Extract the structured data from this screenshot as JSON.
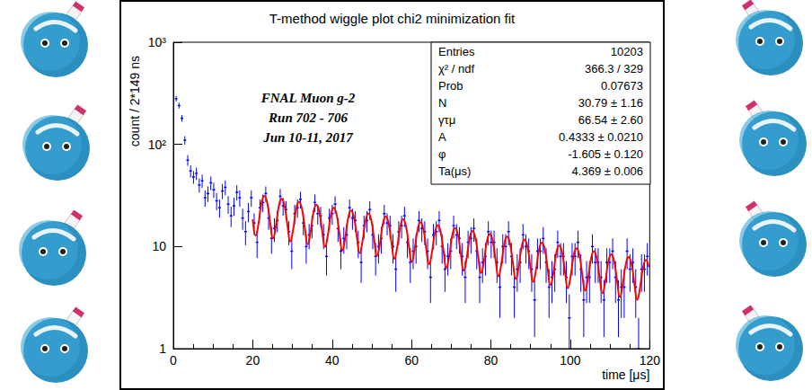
{
  "chart_data": {
    "type": "scatter",
    "title": "T-method wiggle plot chi2 minimization fit",
    "x_label": "time [μs]",
    "y_label": "count / 2*149 ns",
    "log": "y",
    "grid": false,
    "xlim": [
      0,
      120
    ],
    "xticks": [
      0,
      20,
      40,
      60,
      80,
      100,
      120
    ],
    "ylim": [
      1,
      1000
    ],
    "yticks": [
      1,
      10,
      {
        "value": 100,
        "label": "10²"
      },
      {
        "value": 1000,
        "label": "10³"
      }
    ],
    "annotations": [
      "FNAL Muon g-2",
      "Run 702 - 706",
      "Jun 10-11, 2017"
    ],
    "stats_box": [
      {
        "label": "Entries",
        "value": "10203"
      },
      {
        "label": "χ² / ndf",
        "value": "366.3 / 329"
      },
      {
        "label": "Prob",
        "value": "0.07673"
      },
      {
        "label": "N",
        "value": "30.79 ± 1.16"
      },
      {
        "label": "γτμ",
        "value": "66.54 ± 2.60"
      },
      {
        "label": "A",
        "value": "0.4333 ± 0.0210"
      },
      {
        "label": "φ",
        "value": "-1.605 ± 0.120"
      },
      {
        "label": "Ta(μs)",
        "value": "4.369 ± 0.006"
      }
    ],
    "series": [
      {
        "type": "scatter",
        "color": "#0000ff",
        "x": [
          0.7,
          1.43,
          2.16,
          2.89,
          3.62,
          4.34,
          5.07,
          5.8,
          6.53,
          7.26,
          7.99,
          8.71,
          9.44,
          10.17,
          10.9,
          11.63,
          12.35,
          13.08,
          13.81,
          14.54,
          15.27,
          15.99,
          16.72,
          17.45,
          18.18,
          18.91,
          19.64,
          20.36,
          21.09,
          21.82,
          22.55,
          23.28,
          24.0,
          24.73,
          25.46,
          26.19,
          26.92,
          27.64,
          28.37,
          29.1,
          29.83,
          30.56,
          31.28,
          32.01,
          32.74,
          33.47,
          34.2,
          34.93,
          35.65,
          36.38,
          37.11,
          37.84,
          38.57,
          39.3,
          40.02,
          40.75,
          41.48,
          42.21,
          42.94,
          43.67,
          44.39,
          45.12,
          45.85,
          46.58,
          47.31,
          48.03,
          48.76,
          49.49,
          50.22,
          50.95,
          51.68,
          52.4,
          53.13,
          53.86,
          54.59,
          55.32,
          56.04,
          56.77,
          57.5,
          58.23,
          58.96,
          59.69,
          60.41,
          61.14,
          61.87,
          62.6,
          63.33,
          64.05,
          64.78,
          65.51,
          66.24,
          66.97,
          67.7,
          68.42,
          69.15,
          69.88,
          70.61,
          71.34,
          72.06,
          72.79,
          73.52,
          74.25,
          74.98,
          75.71,
          76.43,
          77.16,
          77.89,
          78.62,
          79.35,
          80.07,
          80.8,
          81.53,
          82.26,
          82.99,
          83.72,
          84.44,
          85.17,
          85.9,
          86.63,
          87.36,
          88.08,
          88.81,
          89.54,
          90.27,
          91.0,
          91.73,
          92.45,
          93.18,
          93.91,
          94.64,
          95.37,
          96.09,
          96.82,
          97.55,
          98.28,
          99.01,
          99.74,
          100.46,
          101.19,
          101.92,
          102.65,
          103.38,
          104.11,
          104.83,
          105.56,
          106.29,
          107.02,
          107.75,
          108.47,
          109.2,
          109.93,
          110.66,
          111.39,
          112.12,
          112.84,
          113.57,
          114.3,
          115.03,
          115.76,
          116.48,
          117.21,
          117.94,
          118.67,
          119.4
        ],
        "values": [
          280,
          240,
          180,
          110,
          70,
          55,
          48,
          52,
          40,
          44,
          30,
          33,
          42,
          36,
          28,
          24,
          35,
          38,
          26,
          20,
          25,
          34,
          30,
          19,
          14,
          22,
          30,
          17,
          11,
          24,
          27,
          33,
          19,
          12,
          15,
          18,
          31,
          25,
          23,
          14,
          9,
          21,
          24,
          29,
          17,
          10,
          13,
          16,
          27,
          21,
          20,
          13,
          8,
          19,
          21,
          26,
          15,
          9,
          12,
          13,
          24,
          19,
          18,
          11,
          7,
          16,
          18,
          23,
          13,
          8,
          10,
          12,
          21,
          17,
          16,
          10,
          6,
          14,
          16,
          20,
          11,
          7,
          9,
          10,
          18,
          15,
          14,
          9,
          5,
          13,
          14,
          18,
          10,
          6,
          8,
          9,
          16,
          13,
          12,
          8,
          5,
          11,
          12,
          15,
          9,
          5,
          7,
          8,
          14,
          11,
          11,
          7,
          4,
          10,
          10,
          14,
          8,
          4,
          6,
          7,
          13,
          10,
          9,
          6,
          3,
          9,
          9,
          12,
          7,
          4,
          5,
          6,
          11,
          8,
          8,
          5,
          2,
          8,
          8,
          11,
          6,
          3,
          5,
          5,
          10,
          7,
          7,
          5,
          3,
          7,
          7,
          9,
          5,
          3,
          4,
          4,
          9,
          6,
          7,
          4,
          1,
          6,
          6,
          8
        ],
        "errors": [
          16.7,
          15.5,
          13.4,
          10.5,
          8.4,
          7.4,
          6.9,
          7.2,
          6.3,
          6.6,
          5.5,
          5.7,
          6.5,
          6.0,
          5.3,
          4.9,
          5.9,
          6.2,
          5.1,
          4.5,
          5.0,
          5.8,
          5.5,
          4.4,
          3.7,
          4.7,
          5.5,
          4.1,
          3.3,
          4.9,
          5.2,
          5.7,
          4.4,
          3.5,
          3.9,
          4.2,
          5.6,
          5.0,
          4.8,
          3.7,
          3.0,
          4.6,
          4.9,
          5.4,
          4.1,
          3.2,
          3.6,
          4.0,
          5.2,
          4.6,
          4.5,
          3.6,
          2.8,
          4.4,
          4.6,
          5.1,
          3.9,
          3.0,
          3.5,
          3.6,
          4.9,
          4.4,
          4.2,
          3.3,
          2.6,
          4.0,
          4.2,
          4.8,
          3.6,
          2.8,
          3.2,
          3.5,
          4.6,
          4.1,
          4.0,
          3.2,
          2.4,
          3.7,
          4.0,
          4.5,
          3.3,
          2.6,
          3.0,
          3.2,
          4.2,
          3.9,
          3.7,
          3.0,
          2.2,
          3.6,
          3.7,
          4.2,
          3.2,
          2.4,
          2.8,
          3.0,
          4.0,
          3.6,
          3.5,
          2.8,
          2.2,
          3.3,
          3.5,
          3.9,
          3.0,
          2.2,
          2.6,
          2.8,
          3.7,
          3.3,
          3.3,
          2.6,
          2.0,
          3.2,
          3.2,
          3.7,
          2.8,
          2.0,
          2.4,
          2.6,
          3.6,
          3.2,
          3.0,
          2.4,
          1.7,
          3.0,
          3.0,
          3.5,
          2.6,
          2.0,
          2.2,
          2.4,
          3.3,
          2.8,
          2.8,
          2.2,
          1.4,
          2.8,
          2.8,
          3.3,
          2.4,
          1.7,
          2.2,
          2.2,
          3.2,
          2.6,
          2.6,
          2.2,
          1.7,
          2.6,
          2.6,
          3.0,
          2.2,
          1.7,
          2.0,
          2.0,
          3.0,
          2.4,
          2.6,
          2.0,
          1.0,
          2.4,
          2.4,
          2.8
        ]
      },
      {
        "type": "line",
        "color": "#ff0000",
        "x": [
          20.0,
          20.73,
          21.46,
          22.18,
          22.91,
          23.64,
          24.37,
          25.1,
          25.83,
          26.55,
          27.28,
          28.01,
          28.74,
          29.47,
          30.19,
          30.92,
          31.65,
          32.38,
          33.11,
          33.84,
          34.56,
          35.29,
          36.02,
          36.75,
          37.48,
          38.21,
          38.93,
          39.66,
          40.39,
          41.12,
          41.85,
          42.57,
          43.3,
          44.03,
          44.76,
          45.49,
          46.22,
          46.94,
          47.67,
          48.4,
          49.13,
          49.86,
          50.58,
          51.31,
          52.04,
          52.77,
          53.5,
          54.23,
          54.95,
          55.68,
          56.41,
          57.14,
          57.87,
          58.59,
          59.32,
          60.05,
          60.78,
          61.51,
          62.24,
          62.96,
          63.69,
          64.42,
          65.15,
          65.88,
          66.6,
          67.33,
          68.06,
          68.79,
          69.52,
          70.25,
          70.97,
          71.7,
          72.43,
          73.16,
          73.89,
          74.62,
          75.34,
          76.07,
          76.8,
          77.53,
          78.26,
          78.98,
          79.71,
          80.44,
          81.17,
          81.9,
          82.63,
          83.35,
          84.08,
          84.81,
          85.54,
          86.27,
          86.99,
          87.72,
          88.45,
          89.18,
          89.91,
          90.64,
          91.36,
          92.09,
          92.82,
          93.55,
          94.28,
          95.0,
          95.73,
          96.46,
          97.19,
          97.92,
          98.65,
          99.37,
          100.1,
          100.83,
          101.56,
          102.29,
          103.01,
          103.74,
          104.47,
          105.2,
          105.93,
          106.66,
          107.38,
          108.11,
          108.84,
          109.57,
          110.3,
          111.03,
          111.75,
          112.48,
          113.21,
          113.94,
          114.67,
          115.39,
          116.12,
          116.85,
          117.58,
          118.31,
          119.04,
          119.76
        ],
        "values": [
          18.5,
          12.8,
          16.9,
          26.3,
          31.3,
          26.8,
          17.3,
          12.0,
          15.8,
          24.6,
          29.3,
          25.1,
          16.2,
          11.2,
          14.8,
          23.0,
          27.4,
          23.5,
          15.2,
          10.5,
          13.9,
          21.6,
          25.7,
          22.0,
          14.2,
          9.9,
          13.0,
          20.2,
          24.0,
          20.6,
          13.3,
          9.2,
          12.2,
          18.9,
          22.5,
          19.3,
          12.5,
          8.6,
          11.4,
          17.7,
          21.1,
          18.1,
          11.7,
          8.1,
          10.7,
          16.6,
          19.7,
          16.9,
          10.9,
          7.6,
          10.0,
          15.5,
          18.5,
          15.9,
          10.2,
          7.1,
          9.4,
          14.5,
          17.3,
          14.9,
          9.6,
          6.7,
          8.8,
          13.6,
          16.2,
          13.9,
          9.0,
          6.2,
          8.2,
          12.8,
          15.2,
          13.0,
          8.4,
          5.8,
          7.7,
          11.9,
          14.2,
          12.2,
          7.9,
          5.5,
          7.2,
          11.2,
          13.3,
          11.4,
          7.4,
          5.1,
          6.8,
          10.5,
          12.5,
          10.7,
          6.9,
          4.8,
          6.3,
          9.8,
          11.7,
          10.0,
          6.5,
          4.5,
          5.9,
          9.2,
          10.9,
          9.4,
          6.1,
          4.2,
          5.5,
          8.6,
          10.2,
          8.8,
          5.7,
          3.9,
          5.2,
          8.1,
          9.6,
          8.2,
          5.3,
          3.7,
          4.9,
          7.5,
          9.0,
          7.7,
          5.0,
          3.5,
          4.6,
          7.1,
          8.4,
          7.2,
          4.7,
          3.2,
          4.3,
          6.6,
          7.9,
          6.8,
          4.4,
          3.0,
          4.0,
          6.2,
          7.4,
          6.3
        ]
      }
    ]
  }
}
